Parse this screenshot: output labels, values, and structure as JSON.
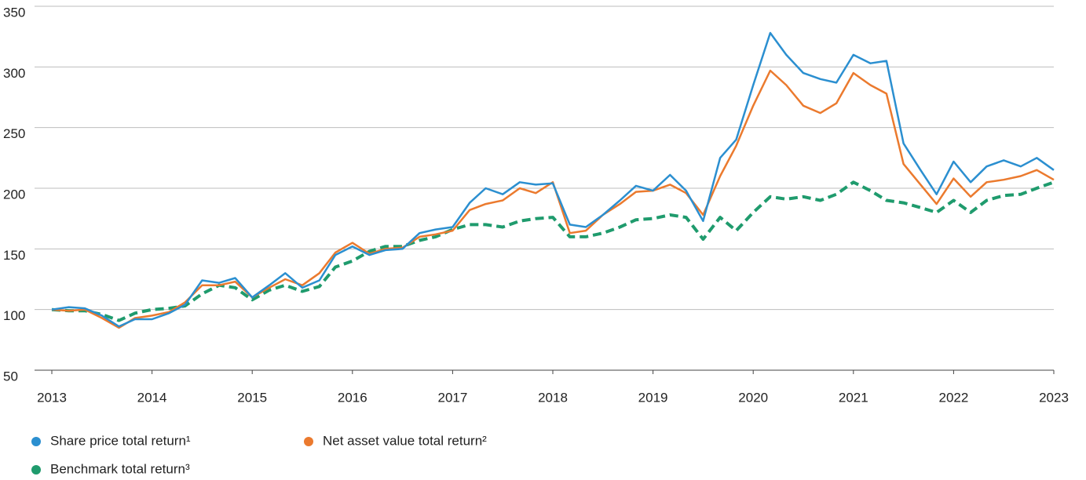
{
  "chart_data": {
    "type": "line",
    "x": [
      2013,
      2013.17,
      2013.33,
      2013.5,
      2013.67,
      2013.83,
      2014,
      2014.17,
      2014.33,
      2014.5,
      2014.67,
      2014.83,
      2015,
      2015.17,
      2015.33,
      2015.5,
      2015.67,
      2015.83,
      2016,
      2016.17,
      2016.33,
      2016.5,
      2016.67,
      2016.83,
      2017,
      2017.17,
      2017.33,
      2017.5,
      2017.67,
      2017.83,
      2018,
      2018.17,
      2018.33,
      2018.5,
      2018.67,
      2018.83,
      2019,
      2019.17,
      2019.33,
      2019.5,
      2019.67,
      2019.83,
      2020,
      2020.17,
      2020.33,
      2020.5,
      2020.67,
      2020.83,
      2021,
      2021.17,
      2021.33,
      2021.5,
      2021.67,
      2021.83,
      2022,
      2022.17,
      2022.33,
      2022.5,
      2022.67,
      2022.83,
      2023
    ],
    "series": [
      {
        "name": "Share price total return¹",
        "color": "#2b8fd0",
        "dashed": false,
        "values": [
          100,
          102,
          101,
          95,
          86,
          92,
          92,
          97,
          104,
          124,
          122,
          126,
          110,
          120,
          130,
          118,
          124,
          145,
          152,
          145,
          149,
          150,
          163,
          166,
          168,
          188,
          200,
          195,
          205,
          203,
          204,
          170,
          168,
          178,
          190,
          202,
          198,
          211,
          198,
          173,
          225,
          240,
          285,
          328,
          310,
          295,
          290,
          287,
          310,
          303,
          305,
          237,
          215,
          195,
          222,
          205,
          218,
          223,
          218,
          225,
          215
        ]
      },
      {
        "name": "Net asset value total return²",
        "color": "#eb7a2e",
        "dashed": false,
        "values": [
          100,
          99,
          100,
          93,
          85,
          93,
          95,
          98,
          106,
          120,
          120,
          123,
          110,
          118,
          125,
          120,
          130,
          147,
          155,
          146,
          150,
          151,
          160,
          162,
          165,
          182,
          187,
          190,
          200,
          196,
          205,
          163,
          165,
          178,
          187,
          197,
          198,
          203,
          196,
          178,
          210,
          235,
          268,
          297,
          285,
          268,
          262,
          270,
          295,
          285,
          278,
          220,
          203,
          187,
          208,
          193,
          205,
          207,
          210,
          215,
          207
        ]
      },
      {
        "name": "Benchmark total return³",
        "color": "#1f9b6d",
        "dashed": true,
        "values": [
          100,
          99,
          99,
          96,
          91,
          97,
          100,
          101,
          103,
          113,
          120,
          118,
          108,
          116,
          120,
          115,
          119,
          135,
          140,
          148,
          152,
          152,
          157,
          160,
          166,
          170,
          170,
          168,
          173,
          175,
          176,
          160,
          160,
          163,
          168,
          174,
          175,
          178,
          176,
          158,
          176,
          165,
          180,
          193,
          191,
          193,
          190,
          195,
          205,
          198,
          190,
          188,
          184,
          180,
          190,
          180,
          190,
          194,
          195,
          200,
          205
        ]
      }
    ],
    "xlim": [
      2013,
      2023
    ],
    "xticks": [
      2013,
      2014,
      2015,
      2016,
      2017,
      2018,
      2019,
      2020,
      2021,
      2022,
      2023
    ],
    "ylim": [
      50,
      350
    ],
    "yticks": [
      50,
      100,
      150,
      200,
      250,
      300,
      350
    ],
    "grid": true,
    "legend": "bottom-left"
  }
}
